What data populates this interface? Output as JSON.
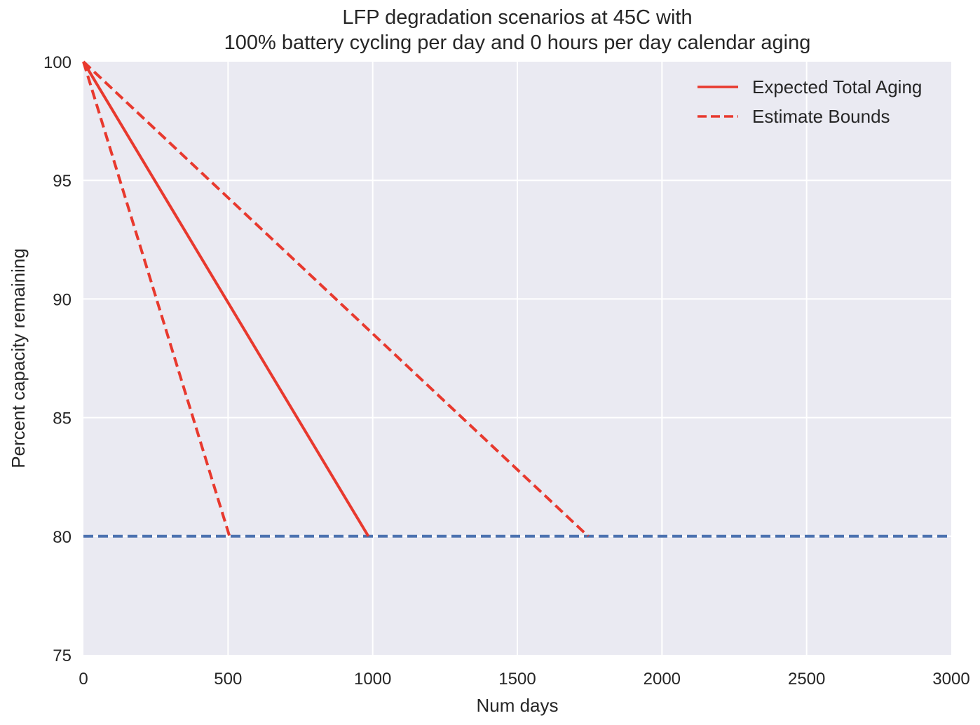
{
  "chart_data": {
    "type": "line",
    "title_line1": "LFP degradation scenarios at 45C with",
    "title_line2": "100% battery cycling per day and 0 hours per day calendar aging",
    "xlabel": "Num days",
    "ylabel": "Percent capacity remaining",
    "xlim": [
      0,
      3000
    ],
    "ylim": [
      75,
      100
    ],
    "x_ticks": [
      0,
      500,
      1000,
      1500,
      2000,
      2500,
      3000
    ],
    "x_tick_labels": [
      "0",
      "500",
      "1000",
      "1500",
      "2000",
      "2500",
      "3000"
    ],
    "y_ticks": [
      75,
      80,
      85,
      90,
      95,
      100
    ],
    "y_tick_labels": [
      "75",
      "80",
      "85",
      "90",
      "95",
      "100"
    ],
    "grid": true,
    "legend_position": "top-right",
    "series": [
      {
        "name": "Expected Total Aging",
        "style": "solid",
        "color": "#e8392e",
        "x": [
          0,
          985
        ],
        "y": [
          100,
          80
        ]
      },
      {
        "name": "Estimate Bounds",
        "style": "dashed",
        "color": "#e8392e",
        "x": [
          0,
          505
        ],
        "y": [
          100,
          80
        ]
      },
      {
        "style": "dashed",
        "color": "#e8392e",
        "x": [
          0,
          1745
        ],
        "y": [
          100,
          80
        ]
      },
      {
        "style": "dashed",
        "color": "#4c72b0",
        "x": [
          0,
          3000
        ],
        "y": [
          80,
          80
        ]
      }
    ]
  }
}
